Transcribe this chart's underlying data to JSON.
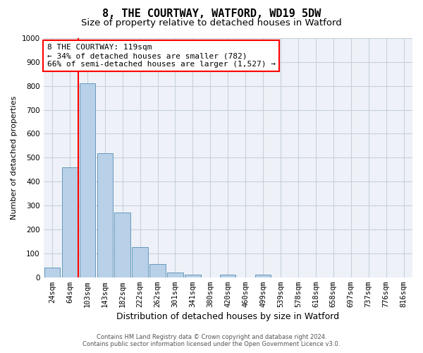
{
  "title": "8, THE COURTWAY, WATFORD, WD19 5DW",
  "subtitle": "Size of property relative to detached houses in Watford",
  "xlabel": "Distribution of detached houses by size in Watford",
  "ylabel": "Number of detached properties",
  "bar_labels": [
    "24sqm",
    "64sqm",
    "103sqm",
    "143sqm",
    "182sqm",
    "222sqm",
    "262sqm",
    "301sqm",
    "341sqm",
    "380sqm",
    "420sqm",
    "460sqm",
    "499sqm",
    "539sqm",
    "578sqm",
    "618sqm",
    "658sqm",
    "697sqm",
    "737sqm",
    "776sqm",
    "816sqm"
  ],
  "bar_values": [
    40,
    460,
    810,
    520,
    270,
    125,
    55,
    20,
    12,
    0,
    10,
    0,
    10,
    0,
    0,
    0,
    0,
    0,
    0,
    0,
    0
  ],
  "bar_color": "#b8d0e8",
  "bar_edge_color": "#6699bb",
  "vline_x": 1.5,
  "vline_color": "red",
  "ylim": [
    0,
    1000
  ],
  "yticks": [
    0,
    100,
    200,
    300,
    400,
    500,
    600,
    700,
    800,
    900,
    1000
  ],
  "annotation_text": "8 THE COURTWAY: 119sqm\n← 34% of detached houses are smaller (782)\n66% of semi-detached houses are larger (1,527) →",
  "annotation_box_color": "white",
  "annotation_box_edgecolor": "red",
  "footer_line1": "Contains HM Land Registry data © Crown copyright and database right 2024.",
  "footer_line2": "Contains public sector information licensed under the Open Government Licence v3.0.",
  "bg_color": "white",
  "plot_bg_color": "#eef2f8",
  "grid_color": "#c8d0dc",
  "title_fontsize": 11,
  "subtitle_fontsize": 9.5,
  "ylabel_fontsize": 8,
  "xlabel_fontsize": 9,
  "tick_fontsize": 7.5,
  "annotation_fontsize": 8
}
